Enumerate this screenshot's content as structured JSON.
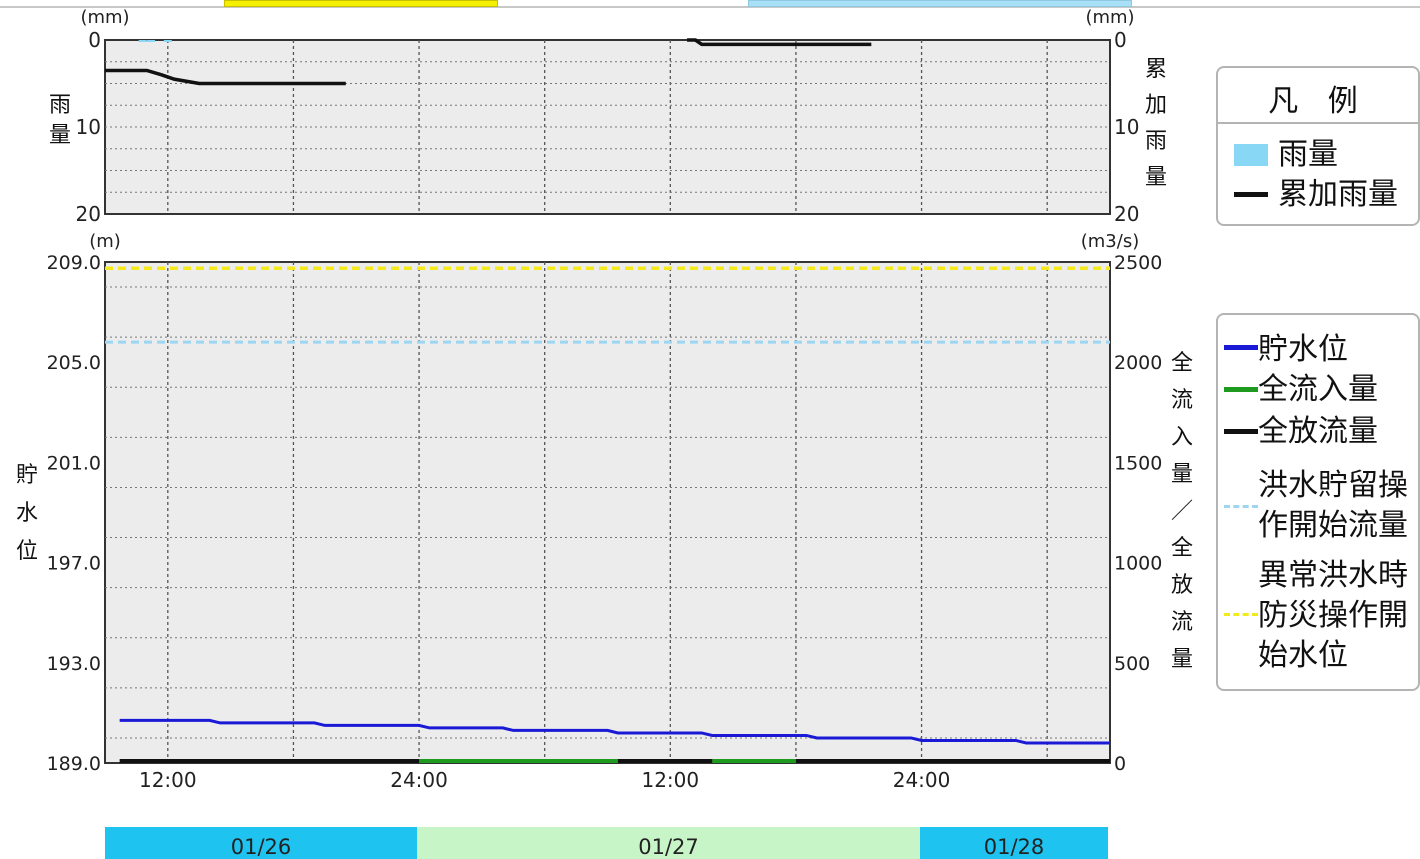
{
  "colors": {
    "rain": "#87d7f5",
    "cumulative_rain": "#111111",
    "storage_level": "#1a1ad6",
    "inflow": "#1e9a1e",
    "outflow": "#111111",
    "flood_threshold": "#9cd6f2",
    "abnormal_threshold": "#f4ea1a",
    "plot_bg": "#ececec",
    "date_band_blue": "#1ec3f0",
    "date_band_green": "#c8f5c8"
  },
  "legend_rain": {
    "title": "凡 例",
    "items": [
      {
        "label": "雨量",
        "key": "rect",
        "color_ref": "rain"
      },
      {
        "label": "累加雨量",
        "key": "line",
        "color_ref": "cumulative_rain"
      }
    ]
  },
  "legend_main": {
    "items": [
      {
        "label": "貯水位",
        "key": "line",
        "color_ref": "storage_level"
      },
      {
        "label": "全流入量",
        "key": "line",
        "color_ref": "inflow"
      },
      {
        "label": "全放流量",
        "key": "line",
        "color_ref": "outflow"
      },
      {
        "label": "洪水貯留操",
        "label2": "作開始流量",
        "key": "dash",
        "color_ref": "flood_threshold"
      },
      {
        "label": "異常洪水時",
        "label2": "防災操作開",
        "label3": "始水位",
        "key": "dash",
        "color_ref": "abnormal_threshold"
      }
    ]
  },
  "chart_data": [
    {
      "type": "line",
      "panel": "rainfall",
      "x_ticks": [
        "12:00",
        "24:00",
        "12:00",
        "24:00"
      ],
      "x_range_hours": [
        0,
        48
      ],
      "left_axis": {
        "unit": "(mm)",
        "label": "雨量",
        "ticks": [
          "0",
          "10",
          "20"
        ],
        "ylim": [
          0,
          20
        ],
        "inverted": true
      },
      "right_axis": {
        "unit": "(mm)",
        "label": "累加雨量",
        "ticks": [
          "0",
          "10",
          "20"
        ],
        "ylim": [
          0,
          20
        ],
        "inverted": true
      },
      "grid": true,
      "series": [
        {
          "name": "雨量",
          "type": "bar",
          "points": [
            [
              1.8,
              0.1
            ],
            [
              2.2,
              0.1
            ],
            [
              3.0,
              0.1
            ]
          ]
        },
        {
          "name": "累加雨量",
          "type": "step",
          "segments": [
            [
              [
                0,
                3.5
              ],
              [
                2,
                3.5
              ],
              [
                2.7,
                4.0
              ],
              [
                3.3,
                4.5
              ],
              [
                4.5,
                5.0
              ],
              [
                11.5,
                5.0
              ]
            ],
            [
              [
                27.8,
                0
              ],
              [
                28.2,
                0
              ],
              [
                28.5,
                0.5
              ],
              [
                36.6,
                0.5
              ]
            ]
          ]
        }
      ]
    },
    {
      "type": "line",
      "panel": "storage_flow",
      "x_ticks": [
        "12:00",
        "24:00",
        "12:00",
        "24:00"
      ],
      "x_range_hours": [
        0,
        48
      ],
      "left_axis": {
        "unit": "(m)",
        "label": "貯水位",
        "ticks": [
          "209.0",
          "205.0",
          "201.0",
          "197.0",
          "193.0",
          "189.0"
        ],
        "ylim": [
          189,
          209
        ]
      },
      "right_axis": {
        "unit": "(m3/s)",
        "label": "全流入量／全放流量",
        "ticks": [
          "2500",
          "2000",
          "1500",
          "1000",
          "500",
          "0"
        ],
        "ylim": [
          0,
          2500
        ]
      },
      "grid": true,
      "series": [
        {
          "name": "貯水位",
          "axis": "left",
          "points": [
            [
              0,
              190.7
            ],
            [
              5.0,
              190.7
            ],
            [
              5.5,
              190.6
            ],
            [
              10.0,
              190.6
            ],
            [
              10.5,
              190.5
            ],
            [
              15.0,
              190.5
            ],
            [
              15.5,
              190.4
            ],
            [
              19.0,
              190.4
            ],
            [
              19.5,
              190.3
            ],
            [
              24.0,
              190.3
            ],
            [
              24.5,
              190.2
            ],
            [
              28.5,
              190.2
            ],
            [
              29.0,
              190.1
            ],
            [
              33.5,
              190.1
            ],
            [
              34.0,
              190.0
            ],
            [
              38.5,
              190.0
            ],
            [
              39.0,
              189.9
            ],
            [
              43.5,
              189.9
            ],
            [
              44.0,
              189.8
            ],
            [
              48,
              189.8
            ]
          ]
        },
        {
          "name": "全流入量",
          "axis": "right",
          "points": [
            [
              15.0,
              5
            ],
            [
              24.5,
              5
            ],
            [
              29.0,
              5
            ],
            [
              33.0,
              5
            ]
          ]
        },
        {
          "name": "全放流量",
          "axis": "right",
          "points": [
            [
              0,
              5
            ],
            [
              48,
              5
            ]
          ]
        },
        {
          "name": "洪水貯留操作開始流量",
          "axis": "right",
          "constant": 2100
        },
        {
          "name": "異常洪水時防災操作開始水位",
          "axis": "left",
          "constant": 208.75
        }
      ]
    }
  ],
  "date_bands": [
    {
      "label": "01/26"
    },
    {
      "label": "01/27"
    },
    {
      "label": "01/28"
    }
  ]
}
